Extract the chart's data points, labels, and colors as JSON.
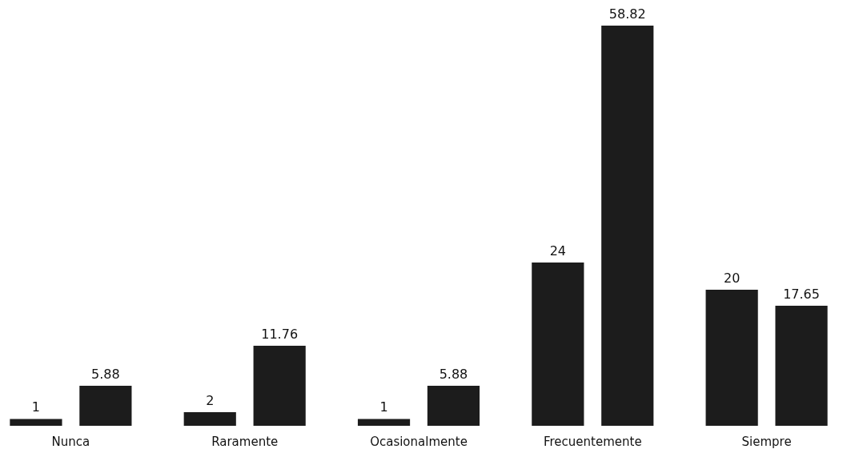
{
  "chart_data": {
    "type": "bar",
    "categories": [
      "Nunca",
      "Raramente",
      "Ocasionalmente",
      "Frecuentemente",
      "Siempre"
    ],
    "series": [
      {
        "color": "#1c1c1c",
        "values": [
          1,
          2,
          1,
          24,
          20
        ]
      },
      {
        "color": "#1c1c1c",
        "values": [
          5.88,
          11.76,
          5.88,
          58.82,
          17.65
        ]
      }
    ],
    "data_labels": true,
    "grid": false,
    "legend": false
  }
}
